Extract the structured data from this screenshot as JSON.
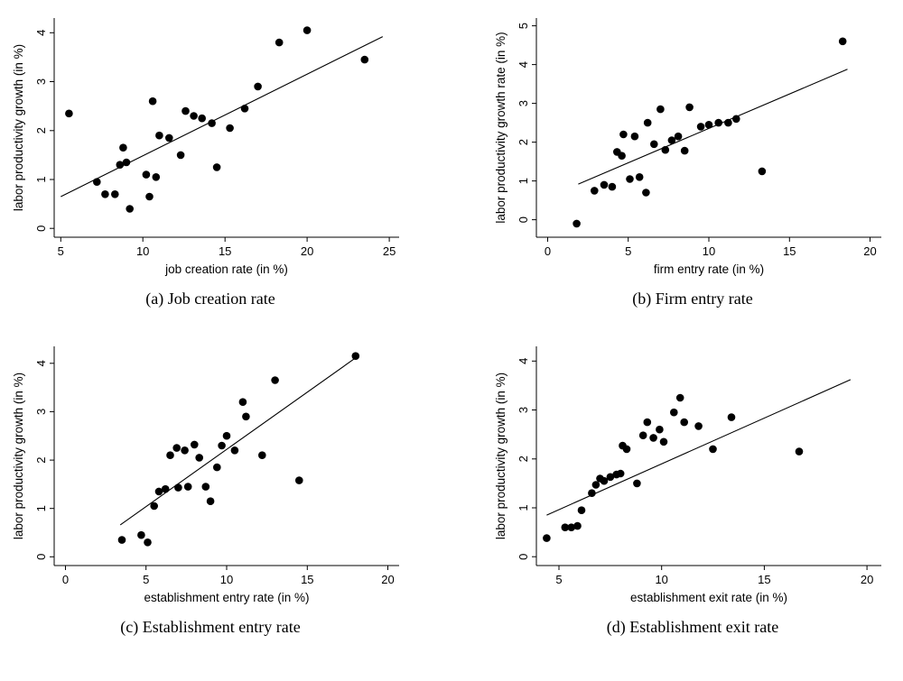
{
  "page": {
    "background": "#ffffff",
    "text_color": "#000000"
  },
  "chart_data": [
    {
      "id": "a",
      "type": "scatter",
      "caption": "(a) Job creation rate",
      "xlabel": "job creation rate (in %)",
      "ylabel": "labor productivity growth (in %)",
      "xlim": [
        4.6,
        25.6
      ],
      "ylim": [
        -0.18,
        4.3
      ],
      "xticks": [
        5,
        10,
        15,
        20,
        25
      ],
      "yticks": [
        0,
        1,
        2,
        3,
        4
      ],
      "grid": false,
      "legend": "none",
      "marker_color": "#000000",
      "line_color": "#000000",
      "points": [
        [
          5.5,
          2.35
        ],
        [
          7.2,
          0.95
        ],
        [
          7.7,
          0.7
        ],
        [
          8.3,
          0.7
        ],
        [
          8.6,
          1.3
        ],
        [
          8.8,
          1.65
        ],
        [
          9.0,
          1.35
        ],
        [
          9.2,
          0.4
        ],
        [
          10.2,
          1.1
        ],
        [
          10.4,
          0.65
        ],
        [
          10.6,
          2.6
        ],
        [
          10.8,
          1.05
        ],
        [
          11.0,
          1.9
        ],
        [
          11.6,
          1.85
        ],
        [
          12.3,
          1.5
        ],
        [
          12.6,
          2.4
        ],
        [
          13.1,
          2.3
        ],
        [
          13.6,
          2.25
        ],
        [
          14.2,
          2.15
        ],
        [
          14.5,
          1.25
        ],
        [
          15.3,
          2.05
        ],
        [
          16.2,
          2.45
        ],
        [
          17.0,
          2.9
        ],
        [
          18.3,
          3.8
        ],
        [
          20.0,
          4.05
        ],
        [
          23.5,
          3.45
        ]
      ],
      "fit_line": {
        "x1": 5.0,
        "y1": 0.65,
        "x2": 24.6,
        "y2": 3.92
      }
    },
    {
      "id": "b",
      "type": "scatter",
      "caption": "(b) Firm entry rate",
      "xlabel": "firm entry rate (in %)",
      "ylabel": "labor productivity growth rate (in %)",
      "xlim": [
        -0.7,
        20.7
      ],
      "ylim": [
        -0.45,
        5.2
      ],
      "xticks": [
        0,
        5,
        10,
        15,
        20
      ],
      "yticks": [
        0,
        1,
        2,
        3,
        4,
        5
      ],
      "grid": false,
      "legend": "none",
      "marker_color": "#000000",
      "line_color": "#000000",
      "points": [
        [
          1.8,
          -0.1
        ],
        [
          2.9,
          0.75
        ],
        [
          3.5,
          0.9
        ],
        [
          4.0,
          0.85
        ],
        [
          4.3,
          1.75
        ],
        [
          4.6,
          1.65
        ],
        [
          4.7,
          2.2
        ],
        [
          5.1,
          1.05
        ],
        [
          5.4,
          2.15
        ],
        [
          5.7,
          1.1
        ],
        [
          6.1,
          0.7
        ],
        [
          6.2,
          2.5
        ],
        [
          6.6,
          1.95
        ],
        [
          7.0,
          2.85
        ],
        [
          7.3,
          1.8
        ],
        [
          7.7,
          2.05
        ],
        [
          8.1,
          2.15
        ],
        [
          8.5,
          1.78
        ],
        [
          8.8,
          2.9
        ],
        [
          9.5,
          2.4
        ],
        [
          10.0,
          2.45
        ],
        [
          10.6,
          2.5
        ],
        [
          11.2,
          2.5
        ],
        [
          11.7,
          2.6
        ],
        [
          13.3,
          1.25
        ],
        [
          18.3,
          4.6
        ]
      ],
      "fit_line": {
        "x1": 1.9,
        "y1": 0.92,
        "x2": 18.6,
        "y2": 3.88
      }
    },
    {
      "id": "c",
      "type": "scatter",
      "caption": "(c) Establishment entry rate",
      "xlabel": "establishment entry rate (in %)",
      "ylabel": "labor productivity growth (in %)",
      "xlim": [
        -0.7,
        20.7
      ],
      "ylim": [
        -0.18,
        4.35
      ],
      "xticks": [
        0,
        5,
        10,
        15,
        20
      ],
      "yticks": [
        0,
        1,
        2,
        3,
        4
      ],
      "grid": false,
      "legend": "none",
      "marker_color": "#000000",
      "line_color": "#000000",
      "points": [
        [
          3.5,
          0.35
        ],
        [
          4.7,
          0.45
        ],
        [
          5.1,
          0.3
        ],
        [
          5.5,
          1.05
        ],
        [
          5.8,
          1.35
        ],
        [
          6.2,
          1.4
        ],
        [
          6.5,
          2.1
        ],
        [
          6.9,
          2.25
        ],
        [
          7.0,
          1.43
        ],
        [
          7.4,
          2.2
        ],
        [
          7.6,
          1.45
        ],
        [
          8.0,
          2.32
        ],
        [
          8.3,
          2.05
        ],
        [
          8.7,
          1.45
        ],
        [
          9.0,
          1.15
        ],
        [
          9.4,
          1.85
        ],
        [
          9.7,
          2.3
        ],
        [
          10.0,
          2.5
        ],
        [
          10.5,
          2.2
        ],
        [
          11.0,
          3.2
        ],
        [
          11.2,
          2.9
        ],
        [
          12.2,
          2.1
        ],
        [
          13.0,
          3.65
        ],
        [
          14.5,
          1.58
        ],
        [
          18.0,
          4.15
        ]
      ],
      "fit_line": {
        "x1": 3.4,
        "y1": 0.66,
        "x2": 18.2,
        "y2": 4.16
      }
    },
    {
      "id": "d",
      "type": "scatter",
      "caption": "(d) Establishment exit rate",
      "xlabel": "establishment exit rate (in %)",
      "ylabel": "labor productivity growth (in %)",
      "xlim": [
        3.9,
        20.7
      ],
      "ylim": [
        -0.18,
        4.3
      ],
      "xticks": [
        5,
        10,
        15,
        20
      ],
      "yticks": [
        0,
        1,
        2,
        3,
        4
      ],
      "grid": false,
      "legend": "none",
      "marker_color": "#000000",
      "line_color": "#000000",
      "points": [
        [
          4.4,
          0.38
        ],
        [
          5.3,
          0.6
        ],
        [
          5.6,
          0.6
        ],
        [
          5.9,
          0.63
        ],
        [
          6.1,
          0.95
        ],
        [
          6.6,
          1.3
        ],
        [
          6.8,
          1.47
        ],
        [
          7.0,
          1.6
        ],
        [
          7.2,
          1.55
        ],
        [
          7.5,
          1.63
        ],
        [
          7.8,
          1.68
        ],
        [
          8.0,
          1.7
        ],
        [
          8.1,
          2.27
        ],
        [
          8.3,
          2.2
        ],
        [
          8.8,
          1.5
        ],
        [
          9.1,
          2.48
        ],
        [
          9.3,
          2.75
        ],
        [
          9.6,
          2.43
        ],
        [
          9.9,
          2.6
        ],
        [
          10.1,
          2.35
        ],
        [
          10.6,
          2.95
        ],
        [
          10.9,
          3.25
        ],
        [
          11.1,
          2.75
        ],
        [
          11.8,
          2.67
        ],
        [
          12.5,
          2.2
        ],
        [
          13.4,
          2.85
        ],
        [
          16.7,
          2.15
        ]
      ],
      "fit_line": {
        "x1": 4.4,
        "y1": 0.85,
        "x2": 19.2,
        "y2": 3.62
      }
    }
  ]
}
